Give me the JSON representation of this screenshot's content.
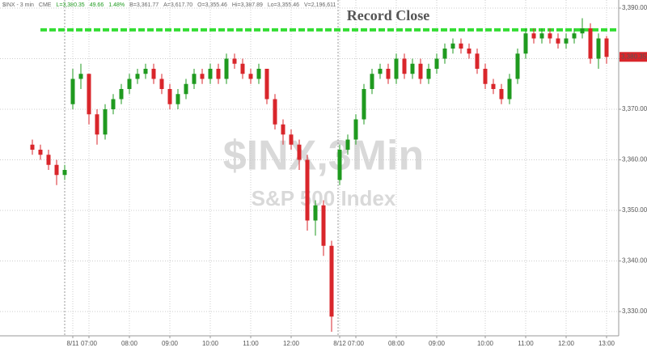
{
  "chart_data": {
    "type": "candlestick",
    "header": [
      "$INX - 3 min",
      "CME",
      "L=3,380.35",
      "49.66",
      "1.48%",
      "B=3,361.77",
      "A=3,617.70",
      "O=3,355.46",
      "Hi=3,387.89",
      "Lo=3,355.46",
      "V=2,196,611"
    ],
    "watermark": "$INX,3Min",
    "watermark_subtitle": "S&P 500 Index",
    "annotation": {
      "text": "Record Close",
      "value": 3385.7,
      "color": "#33dd33"
    },
    "last_price": {
      "value": 3380.35,
      "label": "3,380.35"
    },
    "up_color": "#1f9a1f",
    "down_color": "#d9262b",
    "grid": true,
    "categories": [
      null,
      null,
      null,
      null,
      null,
      "8/11",
      null,
      "07:00",
      null,
      null,
      null,
      null,
      "08:00",
      null,
      null,
      null,
      null,
      "09:00",
      null,
      null,
      null,
      null,
      "10:00",
      null,
      null,
      null,
      null,
      "11:00",
      null,
      null,
      null,
      null,
      "12:00",
      null,
      null,
      null,
      null,
      null,
      "8/12",
      null,
      "07:00",
      null,
      null,
      null,
      null,
      "08:00",
      null,
      null,
      null,
      null,
      "09:00",
      null,
      null,
      null,
      null,
      null,
      "10:00",
      null,
      null,
      null,
      null,
      "11:00",
      null,
      null,
      null,
      null,
      "12:00",
      null,
      null,
      null,
      null,
      "13:00"
    ],
    "open": [
      3363,
      3362,
      3361,
      3359,
      3357,
      3371,
      3376,
      3377,
      3369,
      3365,
      3370,
      3372,
      3374,
      3376,
      3377,
      3378,
      3376,
      3374,
      3371,
      3373,
      3375,
      3377,
      3376,
      3378,
      3376,
      3380,
      3379,
      3377,
      3376,
      3378,
      3372,
      3367,
      3365,
      3363,
      3360,
      3348,
      3351,
      3343,
      3356,
      3362,
      3364,
      3368,
      3374,
      3377,
      3378,
      3376,
      3380,
      3377,
      3379,
      3376,
      3378,
      3380,
      3382,
      3383,
      3382,
      3381,
      3378,
      3375,
      3374,
      3372,
      3376,
      3381,
      3385,
      3384,
      3385,
      3384,
      3383,
      3384,
      3385,
      3386,
      3380,
      3384
    ],
    "high": [
      3364,
      3363,
      3362,
      3360,
      3359,
      3378,
      3379,
      3377,
      3370,
      3371,
      3373,
      3375,
      3377,
      3378,
      3379,
      3379,
      3377,
      3375,
      3374,
      3376,
      3378,
      3378,
      3379,
      3379,
      3381,
      3381,
      3380,
      3378,
      3379,
      3378,
      3373,
      3368,
      3366,
      3364,
      3361,
      3352,
      3352,
      3344,
      3363,
      3365,
      3369,
      3375,
      3378,
      3379,
      3379,
      3381,
      3381,
      3380,
      3380,
      3379,
      3381,
      3383,
      3384,
      3384,
      3383,
      3382,
      3379,
      3376,
      3375,
      3377,
      3382,
      3386,
      3386,
      3386,
      3386,
      3385,
      3385,
      3386,
      3388,
      3387,
      3385,
      3384.5
    ],
    "low": [
      3361,
      3360,
      3358,
      3355,
      3356,
      3370,
      3374,
      3367,
      3363,
      3364,
      3369,
      3371,
      3373,
      3375,
      3376,
      3375,
      3373,
      3370,
      3370,
      3372,
      3374,
      3375,
      3375,
      3375,
      3375,
      3378,
      3376,
      3375,
      3375,
      3371,
      3366,
      3363,
      3362,
      3358,
      3346,
      3345,
      3341,
      3326,
      3355,
      3361,
      3363,
      3367,
      3373,
      3376,
      3375,
      3375,
      3376,
      3376,
      3375,
      3375,
      3377,
      3379,
      3381,
      3381,
      3380,
      3377,
      3374,
      3373,
      3371,
      3371,
      3375,
      3380,
      3383,
      3383,
      3383,
      3382,
      3382,
      3383,
      3384,
      3379,
      3378,
      3379
    ],
    "close": [
      3362,
      3361,
      3359,
      3357,
      3358,
      3376,
      3377,
      3369,
      3365,
      3370,
      3372,
      3374,
      3376,
      3377,
      3378,
      3376,
      3374,
      3371,
      3373,
      3375,
      3377,
      3376,
      3378,
      3376,
      3380,
      3379,
      3377,
      3376,
      3378,
      3372,
      3367,
      3365,
      3363,
      3360,
      3348,
      3351,
      3343,
      3329,
      3362,
      3364,
      3368,
      3374,
      3377,
      3378,
      3376,
      3380,
      3377,
      3379,
      3376,
      3378,
      3380,
      3382,
      3383,
      3382,
      3381,
      3378,
      3375,
      3374,
      3372,
      3376,
      3381,
      3385,
      3384,
      3385,
      3384,
      3383,
      3384,
      3385,
      3386,
      3380,
      3384,
      3380.35
    ],
    "ylim": [
      3325.2,
      3391.6
    ],
    "yticks": [
      {
        "value": 3330,
        "label": "3,330.00"
      },
      {
        "value": 3340,
        "label": "3,340.00"
      },
      {
        "value": 3350,
        "label": "3,350.00"
      },
      {
        "value": 3360,
        "label": "3,360.00"
      },
      {
        "value": 3370,
        "label": "3,370.00"
      },
      {
        "value": 3380,
        "label": "3,380.00"
      },
      {
        "value": 3390,
        "label": "3,390.00"
      }
    ]
  }
}
